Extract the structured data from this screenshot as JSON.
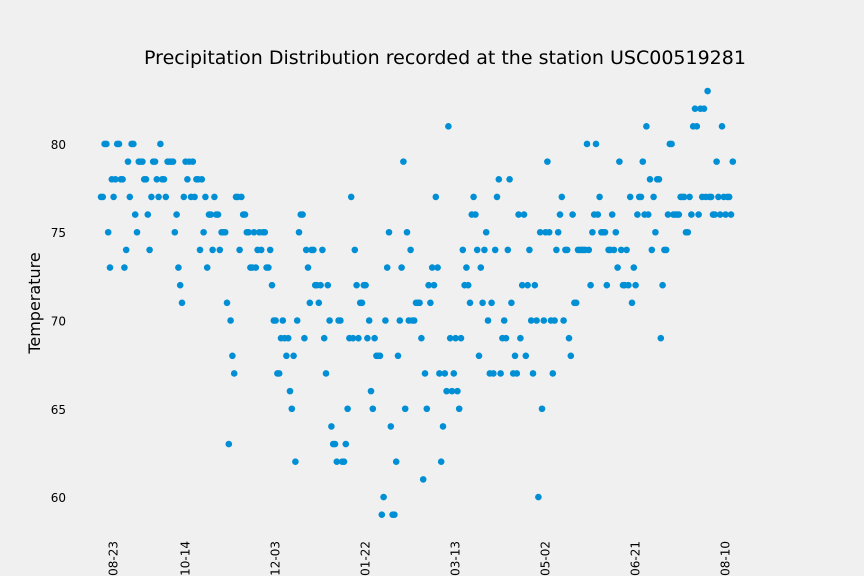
{
  "chart_data": {
    "type": "scatter",
    "title": "Precipitation Distribution recorded at the station USC00519281",
    "ylabel": "Temperature",
    "color": "#008fd5",
    "grid": false,
    "ylim": [
      57.6,
      84.4
    ],
    "yticks": [
      60,
      65,
      70,
      75,
      80
    ],
    "categories": [
      null,
      null,
      null,
      null,
      null,
      null,
      null,
      "08-23",
      null,
      null,
      null,
      null,
      null,
      null,
      null,
      null,
      null,
      null,
      null,
      null,
      null,
      null,
      null,
      null,
      null,
      null,
      null,
      null,
      null,
      null,
      null,
      null,
      null,
      null,
      null,
      null,
      null,
      null,
      null,
      null,
      null,
      null,
      null,
      null,
      null,
      null,
      null,
      "10-14",
      null,
      null,
      null,
      null,
      null,
      null,
      null,
      null,
      null,
      null,
      null,
      null,
      null,
      null,
      null,
      null,
      null,
      null,
      null,
      null,
      null,
      null,
      null,
      null,
      null,
      null,
      null,
      null,
      null,
      null,
      null,
      null,
      null,
      null,
      null,
      null,
      null,
      null,
      null,
      null,
      null,
      null,
      null,
      null,
      null,
      null,
      null,
      null,
      null,
      "12-03",
      null,
      null,
      null,
      null,
      null,
      null,
      null,
      null,
      null,
      null,
      null,
      null,
      null,
      null,
      null,
      null,
      null,
      null,
      null,
      null,
      null,
      null,
      null,
      null,
      null,
      null,
      null,
      null,
      null,
      null,
      null,
      null,
      null,
      null,
      null,
      null,
      null,
      null,
      null,
      null,
      null,
      null,
      null,
      null,
      null,
      null,
      null,
      null,
      null,
      "01-22",
      null,
      null,
      null,
      null,
      null,
      null,
      null,
      null,
      null,
      null,
      null,
      null,
      null,
      null,
      null,
      null,
      null,
      null,
      null,
      null,
      null,
      null,
      null,
      null,
      null,
      null,
      null,
      null,
      null,
      null,
      null,
      null,
      null,
      null,
      null,
      null,
      null,
      null,
      null,
      null,
      null,
      null,
      null,
      null,
      null,
      null,
      null,
      null,
      null,
      "03-13",
      null,
      null,
      null,
      null,
      null,
      null,
      null,
      null,
      null,
      null,
      null,
      null,
      null,
      null,
      null,
      null,
      null,
      null,
      null,
      null,
      null,
      null,
      null,
      null,
      null,
      null,
      null,
      null,
      null,
      null,
      null,
      null,
      null,
      null,
      null,
      null,
      null,
      null,
      null,
      null,
      null,
      null,
      null,
      null,
      null,
      null,
      null,
      null,
      null,
      "05-02",
      null,
      null,
      null,
      null,
      null,
      null,
      null,
      null,
      null,
      null,
      null,
      null,
      null,
      null,
      null,
      null,
      null,
      null,
      null,
      null,
      null,
      null,
      null,
      null,
      null,
      null,
      null,
      null,
      null,
      null,
      null,
      null,
      null,
      null,
      null,
      null,
      null,
      null,
      null,
      null,
      null,
      null,
      null,
      null,
      null,
      null,
      null,
      null,
      null,
      "06-21",
      null,
      null,
      null,
      null,
      null,
      null,
      null,
      null,
      null,
      null,
      null,
      null,
      null,
      null,
      null,
      null,
      null,
      null,
      null,
      null,
      null,
      null,
      null,
      null,
      null,
      null,
      null,
      null,
      null,
      null,
      null,
      null,
      null,
      null,
      null,
      null,
      null,
      null,
      null,
      null,
      null,
      null,
      null,
      null,
      null,
      null,
      null,
      null,
      null,
      "08-10",
      null,
      null,
      null,
      null
    ],
    "values": [
      77,
      77,
      80,
      80,
      75,
      73,
      78,
      77,
      78,
      80,
      80,
      78,
      78,
      73,
      74,
      79,
      77,
      80,
      80,
      76,
      75,
      79,
      79,
      79,
      78,
      78,
      76,
      74,
      77,
      79,
      79,
      78,
      77,
      80,
      78,
      78,
      77,
      79,
      79,
      79,
      79,
      75,
      76,
      73,
      72,
      71,
      77,
      79,
      78,
      79,
      77,
      79,
      77,
      78,
      78,
      74,
      78,
      75,
      77,
      73,
      76,
      76,
      74,
      77,
      76,
      76,
      74,
      75,
      75,
      75,
      71,
      63,
      70,
      68,
      67,
      77,
      77,
      74,
      77,
      76,
      76,
      75,
      75,
      73,
      73,
      75,
      73,
      74,
      75,
      74,
      75,
      75,
      73,
      73,
      74,
      72,
      70,
      70,
      67,
      67,
      69,
      70,
      69,
      68,
      69,
      66,
      65,
      68,
      62,
      70,
      75,
      76,
      76,
      69,
      74,
      73,
      71,
      74,
      74,
      72,
      72,
      71,
      72,
      74,
      69,
      67,
      72,
      70,
      64,
      63,
      63,
      62,
      70,
      70,
      62,
      62,
      63,
      65,
      69,
      77,
      69,
      74,
      72,
      69,
      71,
      71,
      72,
      72,
      69,
      70,
      66,
      65,
      69,
      68,
      68,
      68,
      59,
      60,
      70,
      73,
      75,
      64,
      59,
      59,
      62,
      68,
      70,
      73,
      79,
      65,
      75,
      70,
      74,
      70,
      70,
      71,
      71,
      71,
      69,
      61,
      67,
      65,
      72,
      71,
      73,
      72,
      77,
      73,
      67,
      62,
      64,
      67,
      66,
      81,
      69,
      66,
      67,
      69,
      66,
      65,
      69,
      74,
      72,
      73,
      72,
      71,
      76,
      77,
      76,
      74,
      68,
      73,
      71,
      74,
      75,
      70,
      67,
      71,
      67,
      74,
      77,
      78,
      67,
      69,
      70,
      69,
      74,
      78,
      71,
      67,
      68,
      67,
      76,
      69,
      72,
      76,
      68,
      72,
      74,
      70,
      67,
      72,
      70,
      60,
      75,
      65,
      70,
      75,
      79,
      75,
      70,
      67,
      70,
      74,
      75,
      76,
      77,
      70,
      74,
      74,
      69,
      68,
      76,
      71,
      71,
      74,
      74,
      74,
      74,
      74,
      80,
      74,
      72,
      75,
      76,
      80,
      76,
      77,
      75,
      75,
      75,
      72,
      74,
      74,
      76,
      74,
      75,
      73,
      79,
      74,
      72,
      72,
      74,
      72,
      77,
      71,
      73,
      72,
      76,
      77,
      77,
      79,
      76,
      81,
      76,
      78,
      74,
      77,
      75,
      78,
      78,
      69,
      72,
      74,
      74,
      76,
      80,
      80,
      76,
      76,
      76,
      76,
      77,
      77,
      77,
      75,
      75,
      77,
      76,
      81,
      82,
      81,
      76,
      82,
      77,
      82,
      77,
      83,
      77,
      77,
      76,
      76,
      79,
      77,
      76,
      81,
      77,
      76,
      77,
      77,
      76,
      79
    ]
  }
}
